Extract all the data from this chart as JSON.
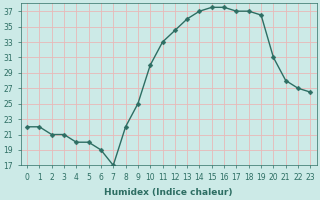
{
  "x": [
    0,
    1,
    2,
    3,
    4,
    5,
    6,
    7,
    8,
    9,
    10,
    11,
    12,
    13,
    14,
    15,
    16,
    17,
    18,
    19,
    20,
    21,
    22,
    23
  ],
  "y": [
    22,
    22,
    21,
    21,
    20,
    20,
    19,
    17,
    22,
    25,
    30,
    33,
    34.5,
    36,
    37,
    37.5,
    37.5,
    37,
    37,
    36.5,
    31,
    28,
    27,
    26.5
  ],
  "line_color": "#2d6e63",
  "marker_color": "#2d6e63",
  "bg_color": "#cceae7",
  "grid_color": "#e8b8b8",
  "xlabel": "Humidex (Indice chaleur)",
  "ylim": [
    17,
    38
  ],
  "xlim": [
    -0.5,
    23.5
  ],
  "yticks": [
    17,
    19,
    21,
    23,
    25,
    27,
    29,
    31,
    33,
    35,
    37
  ],
  "xticks": [
    0,
    1,
    2,
    3,
    4,
    5,
    6,
    7,
    8,
    9,
    10,
    11,
    12,
    13,
    14,
    15,
    16,
    17,
    18,
    19,
    20,
    21,
    22,
    23
  ],
  "xtick_labels": [
    "0",
    "1",
    "2",
    "3",
    "4",
    "5",
    "6",
    "7",
    "8",
    "9",
    "10",
    "11",
    "12",
    "13",
    "14",
    "15",
    "16",
    "17",
    "18",
    "19",
    "20",
    "21",
    "22",
    "23"
  ],
  "font_color": "#2d6e63",
  "line_width": 1.0,
  "marker_size": 2.5,
  "tick_fontsize": 5.5,
  "xlabel_fontsize": 6.5
}
